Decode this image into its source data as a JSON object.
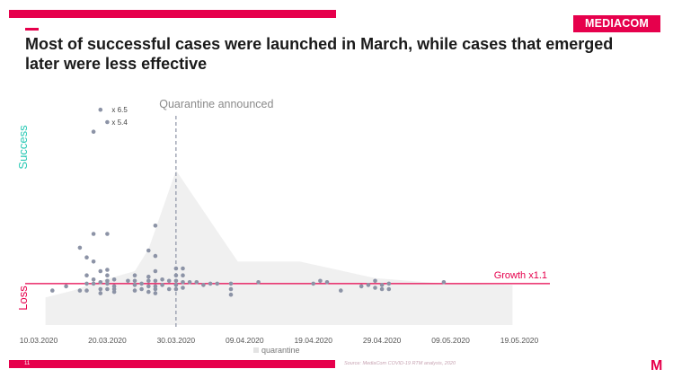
{
  "header": {
    "logo_text": "MEDIACOM",
    "title": "Most of successful cases were launched in March, while cases that emerged later were less effective"
  },
  "footer": {
    "page_number": "11",
    "source": "Source: MediaCom COVID-19 RTM analysis, 2020",
    "corner_mark": "M"
  },
  "colors": {
    "accent": "#e6004c",
    "success_label": "#29c9b5",
    "points": "#8c93a6",
    "area": "#f0f0f0",
    "dashed_line": "#8c93a6"
  },
  "chart_data": {
    "type": "scatter",
    "x_axis": {
      "tick_labels": [
        "10.03.2020",
        "20.03.2020",
        "30.03.2020",
        "09.04.2020",
        "19.04.2020",
        "29.04.2020",
        "09.05.2020",
        "19.05.2020"
      ],
      "range": [
        "10.03.2020",
        "19.05.2020"
      ]
    },
    "y_axis": {
      "top_label": "Success",
      "bottom_label": "Loss",
      "range": [
        0.8,
        2.4
      ]
    },
    "growth_line": {
      "value": 1.1,
      "label": "Growth  x1.1"
    },
    "event_line": {
      "date": "30.03.2020",
      "label": "Quarantine announced"
    },
    "legend": {
      "entries": [
        "quarantine"
      ],
      "placement": "bottom"
    },
    "annotations": [
      {
        "text": "x 6.5",
        "date": "20.03.2020",
        "y": 2.36
      },
      {
        "text": "x 5.4",
        "date": "20.03.2020",
        "y": 2.27
      }
    ],
    "quarantine_area": [
      {
        "date": "11.03.2020",
        "y": 0.8
      },
      {
        "date": "11.03.2020",
        "y": 1.0
      },
      {
        "date": "15.03.2020",
        "y": 1.05
      },
      {
        "date": "19.03.2020",
        "y": 1.12
      },
      {
        "date": "24.03.2020",
        "y": 1.19
      },
      {
        "date": "26.03.2020",
        "y": 1.35
      },
      {
        "date": "30.03.2020",
        "y": 1.92
      },
      {
        "date": "08.04.2020",
        "y": 1.26
      },
      {
        "date": "17.04.2020",
        "y": 1.26
      },
      {
        "date": "28.04.2020",
        "y": 1.14
      },
      {
        "date": "08.05.2020",
        "y": 1.1
      },
      {
        "date": "18.05.2020",
        "y": 1.09
      },
      {
        "date": "18.05.2020",
        "y": 0.8
      }
    ],
    "points": [
      {
        "date": "12.03.2020",
        "y": 1.05
      },
      {
        "date": "14.03.2020",
        "y": 1.08
      },
      {
        "date": "16.03.2020",
        "y": 1.05
      },
      {
        "date": "16.03.2020",
        "y": 1.36
      },
      {
        "date": "17.03.2020",
        "y": 1.29
      },
      {
        "date": "17.03.2020",
        "y": 1.16
      },
      {
        "date": "17.03.2020",
        "y": 1.1
      },
      {
        "date": "17.03.2020",
        "y": 1.05
      },
      {
        "date": "18.03.2020",
        "y": 1.46
      },
      {
        "date": "18.03.2020",
        "y": 1.26
      },
      {
        "date": "18.03.2020",
        "y": 1.13
      },
      {
        "date": "18.03.2020",
        "y": 1.1
      },
      {
        "date": "18.03.2020",
        "y": 2.2
      },
      {
        "date": "19.03.2020",
        "y": 2.36
      },
      {
        "date": "19.03.2020",
        "y": 1.19
      },
      {
        "date": "19.03.2020",
        "y": 1.11
      },
      {
        "date": "19.03.2020",
        "y": 1.06
      },
      {
        "date": "19.03.2020",
        "y": 1.03
      },
      {
        "date": "20.03.2020",
        "y": 2.27
      },
      {
        "date": "20.03.2020",
        "y": 1.46
      },
      {
        "date": "20.03.2020",
        "y": 1.2
      },
      {
        "date": "20.03.2020",
        "y": 1.16
      },
      {
        "date": "20.03.2020",
        "y": 1.12
      },
      {
        "date": "20.03.2020",
        "y": 1.1
      },
      {
        "date": "20.03.2020",
        "y": 1.06
      },
      {
        "date": "21.03.2020",
        "y": 1.13
      },
      {
        "date": "21.03.2020",
        "y": 1.08
      },
      {
        "date": "21.03.2020",
        "y": 1.06
      },
      {
        "date": "21.03.2020",
        "y": 1.04
      },
      {
        "date": "23.03.2020",
        "y": 1.12
      },
      {
        "date": "24.03.2020",
        "y": 1.16
      },
      {
        "date": "24.03.2020",
        "y": 1.12
      },
      {
        "date": "24.03.2020",
        "y": 1.09
      },
      {
        "date": "24.03.2020",
        "y": 1.05
      },
      {
        "date": "25.03.2020",
        "y": 1.1
      },
      {
        "date": "25.03.2020",
        "y": 1.06
      },
      {
        "date": "26.03.2020",
        "y": 1.34
      },
      {
        "date": "26.03.2020",
        "y": 1.15
      },
      {
        "date": "26.03.2020",
        "y": 1.12
      },
      {
        "date": "26.03.2020",
        "y": 1.08
      },
      {
        "date": "26.03.2020",
        "y": 1.04
      },
      {
        "date": "27.03.2020",
        "y": 1.3
      },
      {
        "date": "27.03.2020",
        "y": 1.19
      },
      {
        "date": "27.03.2020",
        "y": 1.12
      },
      {
        "date": "27.03.2020",
        "y": 1.08
      },
      {
        "date": "27.03.2020",
        "y": 1.06
      },
      {
        "date": "27.03.2020",
        "y": 1.03
      },
      {
        "date": "27.03.2020",
        "y": 1.52
      },
      {
        "date": "28.03.2020",
        "y": 1.13
      },
      {
        "date": "28.03.2020",
        "y": 1.09
      },
      {
        "date": "29.03.2020",
        "y": 1.12
      },
      {
        "date": "29.03.2020",
        "y": 1.06
      },
      {
        "date": "30.03.2020",
        "y": 1.21
      },
      {
        "date": "30.03.2020",
        "y": 1.16
      },
      {
        "date": "30.03.2020",
        "y": 1.12
      },
      {
        "date": "30.03.2020",
        "y": 1.09
      },
      {
        "date": "30.03.2020",
        "y": 1.06
      },
      {
        "date": "31.03.2020",
        "y": 1.21
      },
      {
        "date": "31.03.2020",
        "y": 1.16
      },
      {
        "date": "31.03.2020",
        "y": 1.11
      },
      {
        "date": "31.03.2020",
        "y": 1.07
      },
      {
        "date": "01.04.2020",
        "y": 1.11
      },
      {
        "date": "02.04.2020",
        "y": 1.11
      },
      {
        "date": "03.04.2020",
        "y": 1.09
      },
      {
        "date": "04.04.2020",
        "y": 1.1
      },
      {
        "date": "05.04.2020",
        "y": 1.1
      },
      {
        "date": "07.04.2020",
        "y": 1.1
      },
      {
        "date": "07.04.2020",
        "y": 1.06
      },
      {
        "date": "07.04.2020",
        "y": 1.02
      },
      {
        "date": "11.04.2020",
        "y": 1.11
      },
      {
        "date": "19.04.2020",
        "y": 1.1
      },
      {
        "date": "20.04.2020",
        "y": 1.12
      },
      {
        "date": "21.04.2020",
        "y": 1.11
      },
      {
        "date": "23.04.2020",
        "y": 1.05
      },
      {
        "date": "26.04.2020",
        "y": 1.08
      },
      {
        "date": "27.04.2020",
        "y": 1.09
      },
      {
        "date": "28.04.2020",
        "y": 1.12
      },
      {
        "date": "28.04.2020",
        "y": 1.07
      },
      {
        "date": "29.04.2020",
        "y": 1.09
      },
      {
        "date": "29.04.2020",
        "y": 1.06
      },
      {
        "date": "30.04.2020",
        "y": 1.06
      },
      {
        "date": "30.04.2020",
        "y": 1.1
      },
      {
        "date": "08.05.2020",
        "y": 1.11
      }
    ]
  }
}
